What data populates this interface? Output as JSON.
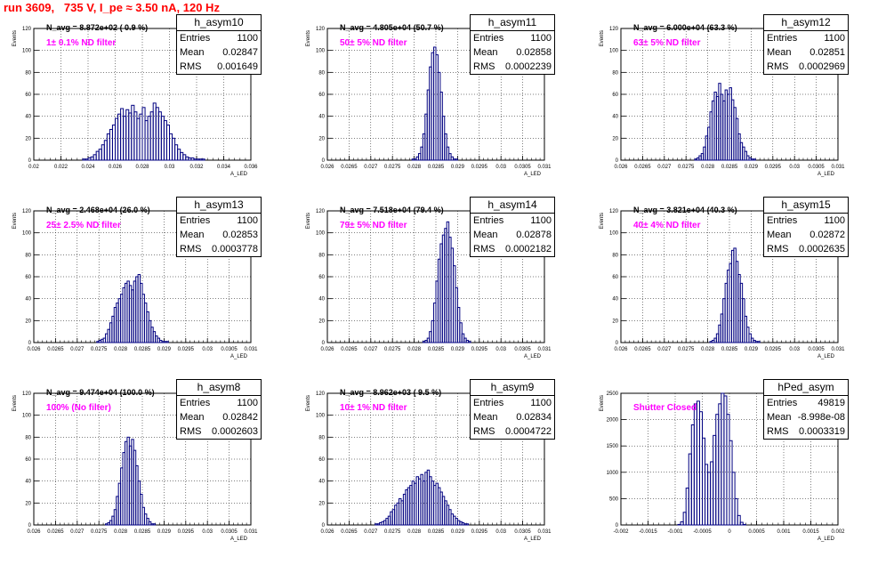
{
  "header": {
    "title": "run 3609,   735 V, I_pe ≈ 3.50 nA, 120 Hz"
  },
  "colors": {
    "title": "#ff0000",
    "histogram_line": "#000080",
    "annotation": "#ff00ff",
    "grid": "#000000"
  },
  "chart_data": [
    {
      "type": "histogram",
      "name": "h_asym10",
      "ylabel": "Events",
      "xlabel": "A_LED",
      "xlim": [
        0.02,
        0.036
      ],
      "ylim": [
        0,
        120
      ],
      "xticks": [
        "0.02",
        "0.022",
        "0.024",
        "0.026",
        "0.028",
        "0.03",
        "0.032",
        "0.034",
        "0.036"
      ],
      "yticks": [
        "0",
        "20",
        "40",
        "60",
        "80",
        "100",
        "120"
      ],
      "navg": "N_avg = 8.872e+02 ( 0.9 %)",
      "filter": "1± 0.1% ND filter",
      "stats": {
        "entries": "1100",
        "mean": "0.02847",
        "rms": "0.001649"
      },
      "bin_start": 0.0236,
      "bin_width": 0.0002,
      "counts": [
        1,
        1,
        2,
        3,
        5,
        8,
        10,
        14,
        18,
        24,
        28,
        32,
        38,
        42,
        47,
        40,
        46,
        43,
        50,
        44,
        38,
        42,
        48,
        36,
        40,
        44,
        52,
        48,
        44,
        40,
        36,
        32,
        24,
        20,
        14,
        10,
        7,
        5,
        3,
        2,
        2,
        1,
        1,
        1,
        1
      ]
    },
    {
      "type": "histogram",
      "name": "h_asym11",
      "ylabel": "Events",
      "xlabel": "A_LED",
      "xlim": [
        0.026,
        0.031
      ],
      "ylim": [
        0,
        120
      ],
      "xticks": [
        "0.026",
        "0.0265",
        "0.027",
        "0.0275",
        "0.028",
        "0.0285",
        "0.029",
        "0.0295",
        "0.03",
        "0.0305",
        "0.031"
      ],
      "yticks": [
        "0",
        "20",
        "40",
        "60",
        "80",
        "100",
        "120"
      ],
      "navg": "N_avg = 4.805e+04 (50.7 %)",
      "filter": "50± 5% ND filter",
      "stats": {
        "entries": "1100",
        "mean": "0.02858",
        "rms": "0.0002239"
      },
      "bin_start": 0.02795,
      "bin_width": 5e-05,
      "counts": [
        1,
        1,
        3,
        6,
        12,
        24,
        42,
        64,
        85,
        98,
        103,
        96,
        80,
        62,
        40,
        24,
        12,
        6,
        3,
        1,
        1
      ]
    },
    {
      "type": "histogram",
      "name": "h_asym12",
      "ylabel": "Events",
      "xlabel": "A_LED",
      "xlim": [
        0.026,
        0.031
      ],
      "ylim": [
        0,
        120
      ],
      "xticks": [
        "0.026",
        "0.0265",
        "0.027",
        "0.0275",
        "0.028",
        "0.0285",
        "0.029",
        "0.0295",
        "0.03",
        "0.0305",
        "0.031"
      ],
      "yticks": [
        "0",
        "20",
        "40",
        "60",
        "80",
        "100",
        "120"
      ],
      "navg": "N_avg = 6.000e+04 (63.3 %)",
      "filter": "63± 5% ND filter",
      "stats": {
        "entries": "1100",
        "mean": "0.02851",
        "rms": "0.0002969"
      },
      "bin_start": 0.0277,
      "bin_width": 5e-05,
      "counts": [
        1,
        2,
        4,
        6,
        12,
        22,
        30,
        44,
        54,
        62,
        58,
        70,
        60,
        54,
        64,
        60,
        66,
        55,
        48,
        38,
        24,
        16,
        12,
        8,
        4,
        2,
        1,
        1
      ]
    },
    {
      "type": "histogram",
      "name": "h_asym13",
      "ylabel": "Events",
      "xlabel": "A_LED",
      "xlim": [
        0.026,
        0.031
      ],
      "ylim": [
        0,
        120
      ],
      "xticks": [
        "0.026",
        "0.0265",
        "0.027",
        "0.0275",
        "0.028",
        "0.0285",
        "0.029",
        "0.0295",
        "0.03",
        "0.0305",
        "0.031"
      ],
      "yticks": [
        "0",
        "20",
        "40",
        "60",
        "80",
        "100",
        "120"
      ],
      "navg": "N_avg = 2.468e+04 (26.0 %)",
      "filter": "25± 2.5% ND filter",
      "stats": {
        "entries": "1100",
        "mean": "0.02853",
        "rms": "0.0003778"
      },
      "bin_start": 0.02745,
      "bin_width": 5e-05,
      "counts": [
        1,
        2,
        3,
        4,
        8,
        12,
        18,
        24,
        32,
        36,
        40,
        44,
        50,
        54,
        56,
        52,
        48,
        56,
        60,
        62,
        54,
        44,
        36,
        28,
        20,
        14,
        10,
        6,
        4,
        2,
        1,
        1,
        1
      ]
    },
    {
      "type": "histogram",
      "name": "h_asym14",
      "ylabel": "Events",
      "xlabel": "A_LED",
      "xlim": [
        0.026,
        0.031
      ],
      "ylim": [
        0,
        120
      ],
      "xticks": [
        "0.026",
        "0.0265",
        "0.027",
        "0.0275",
        "0.028",
        "0.0285",
        "0.029",
        "0.0295",
        "0.03",
        "0.0305",
        "0.031"
      ],
      "yticks": [
        "0",
        "20",
        "40",
        "60",
        "80",
        "100",
        "120"
      ],
      "navg": "N_avg = 7.518e+04 (79.4 %)",
      "filter": "79± 5% ND filter",
      "stats": {
        "entries": "1100",
        "mean": "0.02878",
        "rms": "0.0002182"
      },
      "bin_start": 0.0282,
      "bin_width": 5e-05,
      "counts": [
        1,
        2,
        4,
        10,
        20,
        36,
        56,
        76,
        90,
        98,
        104,
        110,
        96,
        86,
        70,
        50,
        32,
        18,
        8,
        4,
        2,
        1
      ]
    },
    {
      "type": "histogram",
      "name": "h_asym15",
      "ylabel": "Events",
      "xlabel": "A_LED",
      "xlim": [
        0.026,
        0.031
      ],
      "ylim": [
        0,
        120
      ],
      "xticks": [
        "0.026",
        "0.0265",
        "0.027",
        "0.0275",
        "0.028",
        "0.0285",
        "0.029",
        "0.0295",
        "0.03",
        "0.0305",
        "0.031"
      ],
      "yticks": [
        "0",
        "20",
        "40",
        "60",
        "80",
        "100",
        "120"
      ],
      "navg": "N_avg = 3.821e+04 (40.3 %)",
      "filter": "40± 4% ND filter",
      "stats": {
        "entries": "1100",
        "mean": "0.02872",
        "rms": "0.0002635"
      },
      "bin_start": 0.02805,
      "bin_width": 5e-05,
      "counts": [
        1,
        2,
        4,
        8,
        16,
        26,
        40,
        54,
        66,
        72,
        84,
        86,
        74,
        62,
        54,
        40,
        24,
        14,
        8,
        4,
        2,
        1,
        1
      ]
    },
    {
      "type": "histogram",
      "name": "h_asym8",
      "ylabel": "Events",
      "xlabel": "A_LED",
      "xlim": [
        0.026,
        0.031
      ],
      "ylim": [
        0,
        120
      ],
      "xticks": [
        "0.026",
        "0.0265",
        "0.027",
        "0.0275",
        "0.028",
        "0.0285",
        "0.029",
        "0.0295",
        "0.03",
        "0.0305",
        "0.031"
      ],
      "yticks": [
        "0",
        "20",
        "40",
        "60",
        "80",
        "100",
        "120"
      ],
      "navg": "N_avg = 9.474e+04 (100.0 %)",
      "filter": "100% (No filter)",
      "stats": {
        "entries": "1100",
        "mean": "0.02842",
        "rms": "0.0002603"
      },
      "bin_start": 0.02765,
      "bin_width": 5e-05,
      "counts": [
        1,
        2,
        4,
        8,
        14,
        26,
        38,
        52,
        66,
        76,
        80,
        72,
        78,
        68,
        54,
        40,
        28,
        16,
        10,
        6,
        3,
        1,
        1
      ]
    },
    {
      "type": "histogram",
      "name": "h_asym9",
      "ylabel": "Events",
      "xlabel": "A_LED",
      "xlim": [
        0.026,
        0.031
      ],
      "ylim": [
        0,
        120
      ],
      "xticks": [
        "0.026",
        "0.0265",
        "0.027",
        "0.0275",
        "0.028",
        "0.0285",
        "0.029",
        "0.0295",
        "0.03",
        "0.0305",
        "0.031"
      ],
      "yticks": [
        "0",
        "20",
        "40",
        "60",
        "80",
        "100",
        "120"
      ],
      "navg": "N_avg = 8.962e+03 ( 9.5 %)",
      "filter": "10± 1% ND filter",
      "stats": {
        "entries": "1100",
        "mean": "0.02834",
        "rms": "0.0004722"
      },
      "bin_start": 0.0271,
      "bin_width": 5e-05,
      "counts": [
        1,
        1,
        2,
        3,
        4,
        6,
        8,
        12,
        14,
        18,
        20,
        24,
        22,
        28,
        32,
        34,
        36,
        40,
        38,
        44,
        42,
        46,
        40,
        48,
        50,
        44,
        40,
        36,
        38,
        34,
        30,
        26,
        22,
        18,
        14,
        10,
        8,
        6,
        4,
        3,
        2,
        1,
        1
      ]
    },
    {
      "type": "histogram",
      "name": "hPed_asym",
      "ylabel": "Events",
      "xlabel": "A_LED",
      "xlim": [
        -0.002,
        0.002
      ],
      "ylim": [
        0,
        2500
      ],
      "xticks": [
        "-0.002",
        "-0.0015",
        "-0.001",
        "-0.0005",
        "0",
        "0.0005",
        "0.001",
        "0.0015",
        "0.002"
      ],
      "yticks": [
        "0",
        "500",
        "1000",
        "1500",
        "2000",
        "2500"
      ],
      "navg": "",
      "filter": "Shutter Closed",
      "stats": {
        "entries": "49819",
        "mean": "-8.998e-08",
        "rms": "0.0003319"
      },
      "bin_start": -0.00095,
      "bin_width": 5e-05,
      "counts": [
        10,
        60,
        240,
        700,
        1350,
        1900,
        2300,
        2350,
        2150,
        1650,
        1150,
        1000,
        1200,
        1700,
        2100,
        2300,
        2500,
        2450,
        2100,
        1600,
        1000,
        500,
        180,
        50,
        10
      ]
    }
  ]
}
